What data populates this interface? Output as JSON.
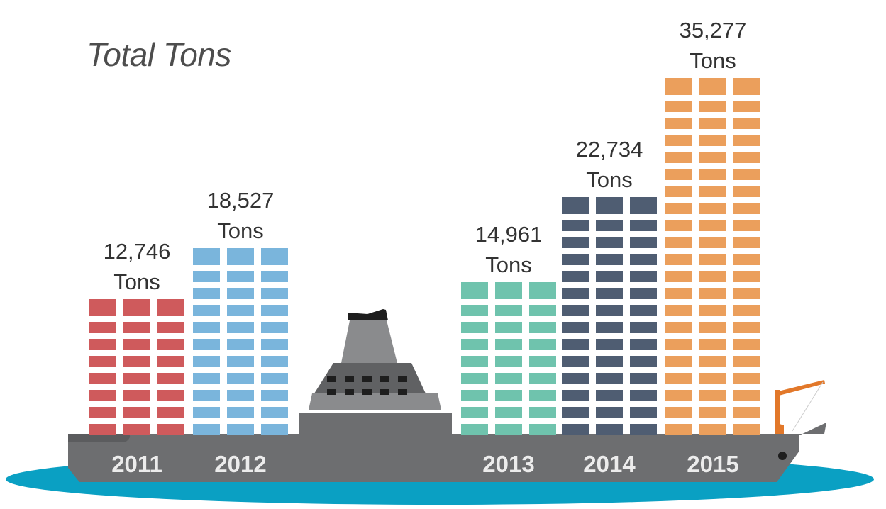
{
  "title": "Total Tons",
  "unit_label": "Tons",
  "colors": {
    "2011": "#cf5a5c",
    "2012": "#7ab5dc",
    "2013": "#6fc3ad",
    "2014": "#4f5d72",
    "2015": "#eb9f5c",
    "hull": "#6d6e70",
    "water": "#0aa0c3",
    "crane": "#e2782a",
    "cabin": "#8a8b8d",
    "cabin_top": "#606163",
    "funnel_top": "#1e1e1e",
    "label_text": "#333333",
    "year_text": "#ececec"
  },
  "chart_data": {
    "type": "bar",
    "categories": [
      "2011",
      "2012",
      "2013",
      "2014",
      "2015"
    ],
    "values": [
      12746,
      18527,
      14961,
      22734,
      35277
    ],
    "value_labels": [
      "12,746",
      "18,527",
      "14,961",
      "22,734",
      "35,277"
    ],
    "title": "Total Tons",
    "xlabel": "",
    "ylabel": "",
    "grid": false,
    "legend": "none"
  }
}
